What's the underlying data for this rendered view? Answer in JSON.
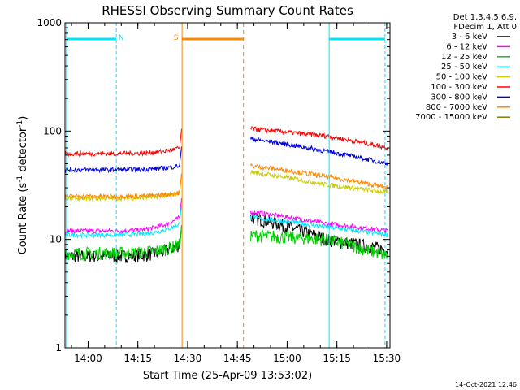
{
  "chart_data": {
    "type": "line",
    "title": "RHESSI Observing Summary Count Rates",
    "xlabel": "Start Time (25-Apr-09 13:53:02)",
    "ylabel_main": "Count Rate (s",
    "ylabel_sup1": "-1",
    "ylabel_mid": " detector",
    "ylabel_sup2": "-1",
    "ylabel_end": ")",
    "y_scale": "log",
    "ylim": [
      1,
      1000
    ],
    "xlim": [
      "13:53:02",
      "15:31:00"
    ],
    "x_ticks": [
      "14:00",
      "14:15",
      "14:30",
      "14:45",
      "15:00",
      "15:15",
      "15:30"
    ],
    "y_ticks": [
      "1",
      "10",
      "100",
      "1000"
    ],
    "grid": false,
    "legend_position": "right",
    "legend_header": [
      "Det 1,3,4,5,6,9,",
      "FDecim 1, Att 0"
    ],
    "series": [
      {
        "name": "3 - 6 keV",
        "color": "#000000",
        "before": 7,
        "preflare": 9,
        "after_start": 16,
        "after_mid": 10,
        "after_end": 8
      },
      {
        "name": "6 - 12 keV",
        "color": "#ff00ff",
        "before": 12,
        "preflare": 16,
        "after_start": 18,
        "after_mid": 14,
        "after_end": 12
      },
      {
        "name": "12 - 25 keV",
        "color": "#00cc00",
        "before": 7.5,
        "preflare": 9,
        "after_start": 11,
        "after_mid": 10,
        "after_end": 7
      },
      {
        "name": "25 - 50 keV",
        "color": "#00e5ff",
        "before": 11,
        "preflare": 14,
        "after_start": 16,
        "after_mid": 13,
        "after_end": 11
      },
      {
        "name": "50 - 100 keV",
        "color": "#cccc00",
        "before": 24,
        "preflare": 27,
        "after_start": 42,
        "after_mid": 32,
        "after_end": 27
      },
      {
        "name": "100 - 300 keV",
        "color": "#ff0000",
        "before": 62,
        "preflare": 70,
        "after_start": 105,
        "after_mid": 90,
        "after_end": 70
      },
      {
        "name": "300 - 800 keV",
        "color": "#0000dd",
        "before": 44,
        "preflare": 48,
        "after_start": 85,
        "after_mid": 65,
        "after_end": 50
      },
      {
        "name": "800 - 7000 keV",
        "color": "#ff8800",
        "before": 25,
        "preflare": 27,
        "after_start": 48,
        "after_mid": 38,
        "after_end": 30
      },
      {
        "name": "7000 - 15000 keV",
        "color": "#808000",
        "before": null,
        "preflare": null,
        "after_start": null,
        "after_mid": null,
        "after_end": null
      }
    ],
    "annotations": [
      {
        "label": "N",
        "color": "#00e5ff"
      },
      {
        "label": "S",
        "color": "#ff8800"
      }
    ]
  },
  "footer_timestamp": "14-Oct-2021 12:46"
}
